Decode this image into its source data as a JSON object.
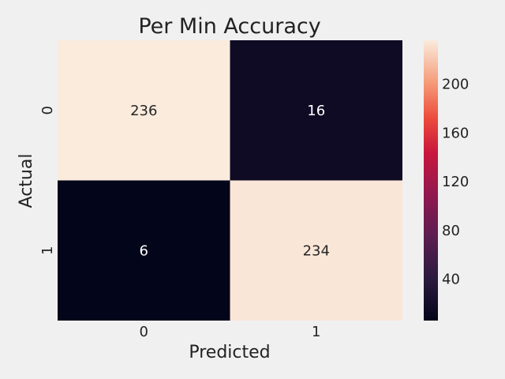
{
  "chart_data": {
    "type": "heatmap",
    "title": "Per Min Accuracy",
    "xlabel": "Predicted",
    "ylabel": "Actual",
    "x_categories": [
      "0",
      "1"
    ],
    "y_categories": [
      "0",
      "1"
    ],
    "values": [
      [
        236,
        16
      ],
      [
        6,
        234
      ]
    ],
    "colorbar": {
      "ticks": [
        40,
        80,
        120,
        160,
        200
      ],
      "range": [
        6,
        236
      ],
      "colormap": "rocket"
    },
    "grid": false
  }
}
